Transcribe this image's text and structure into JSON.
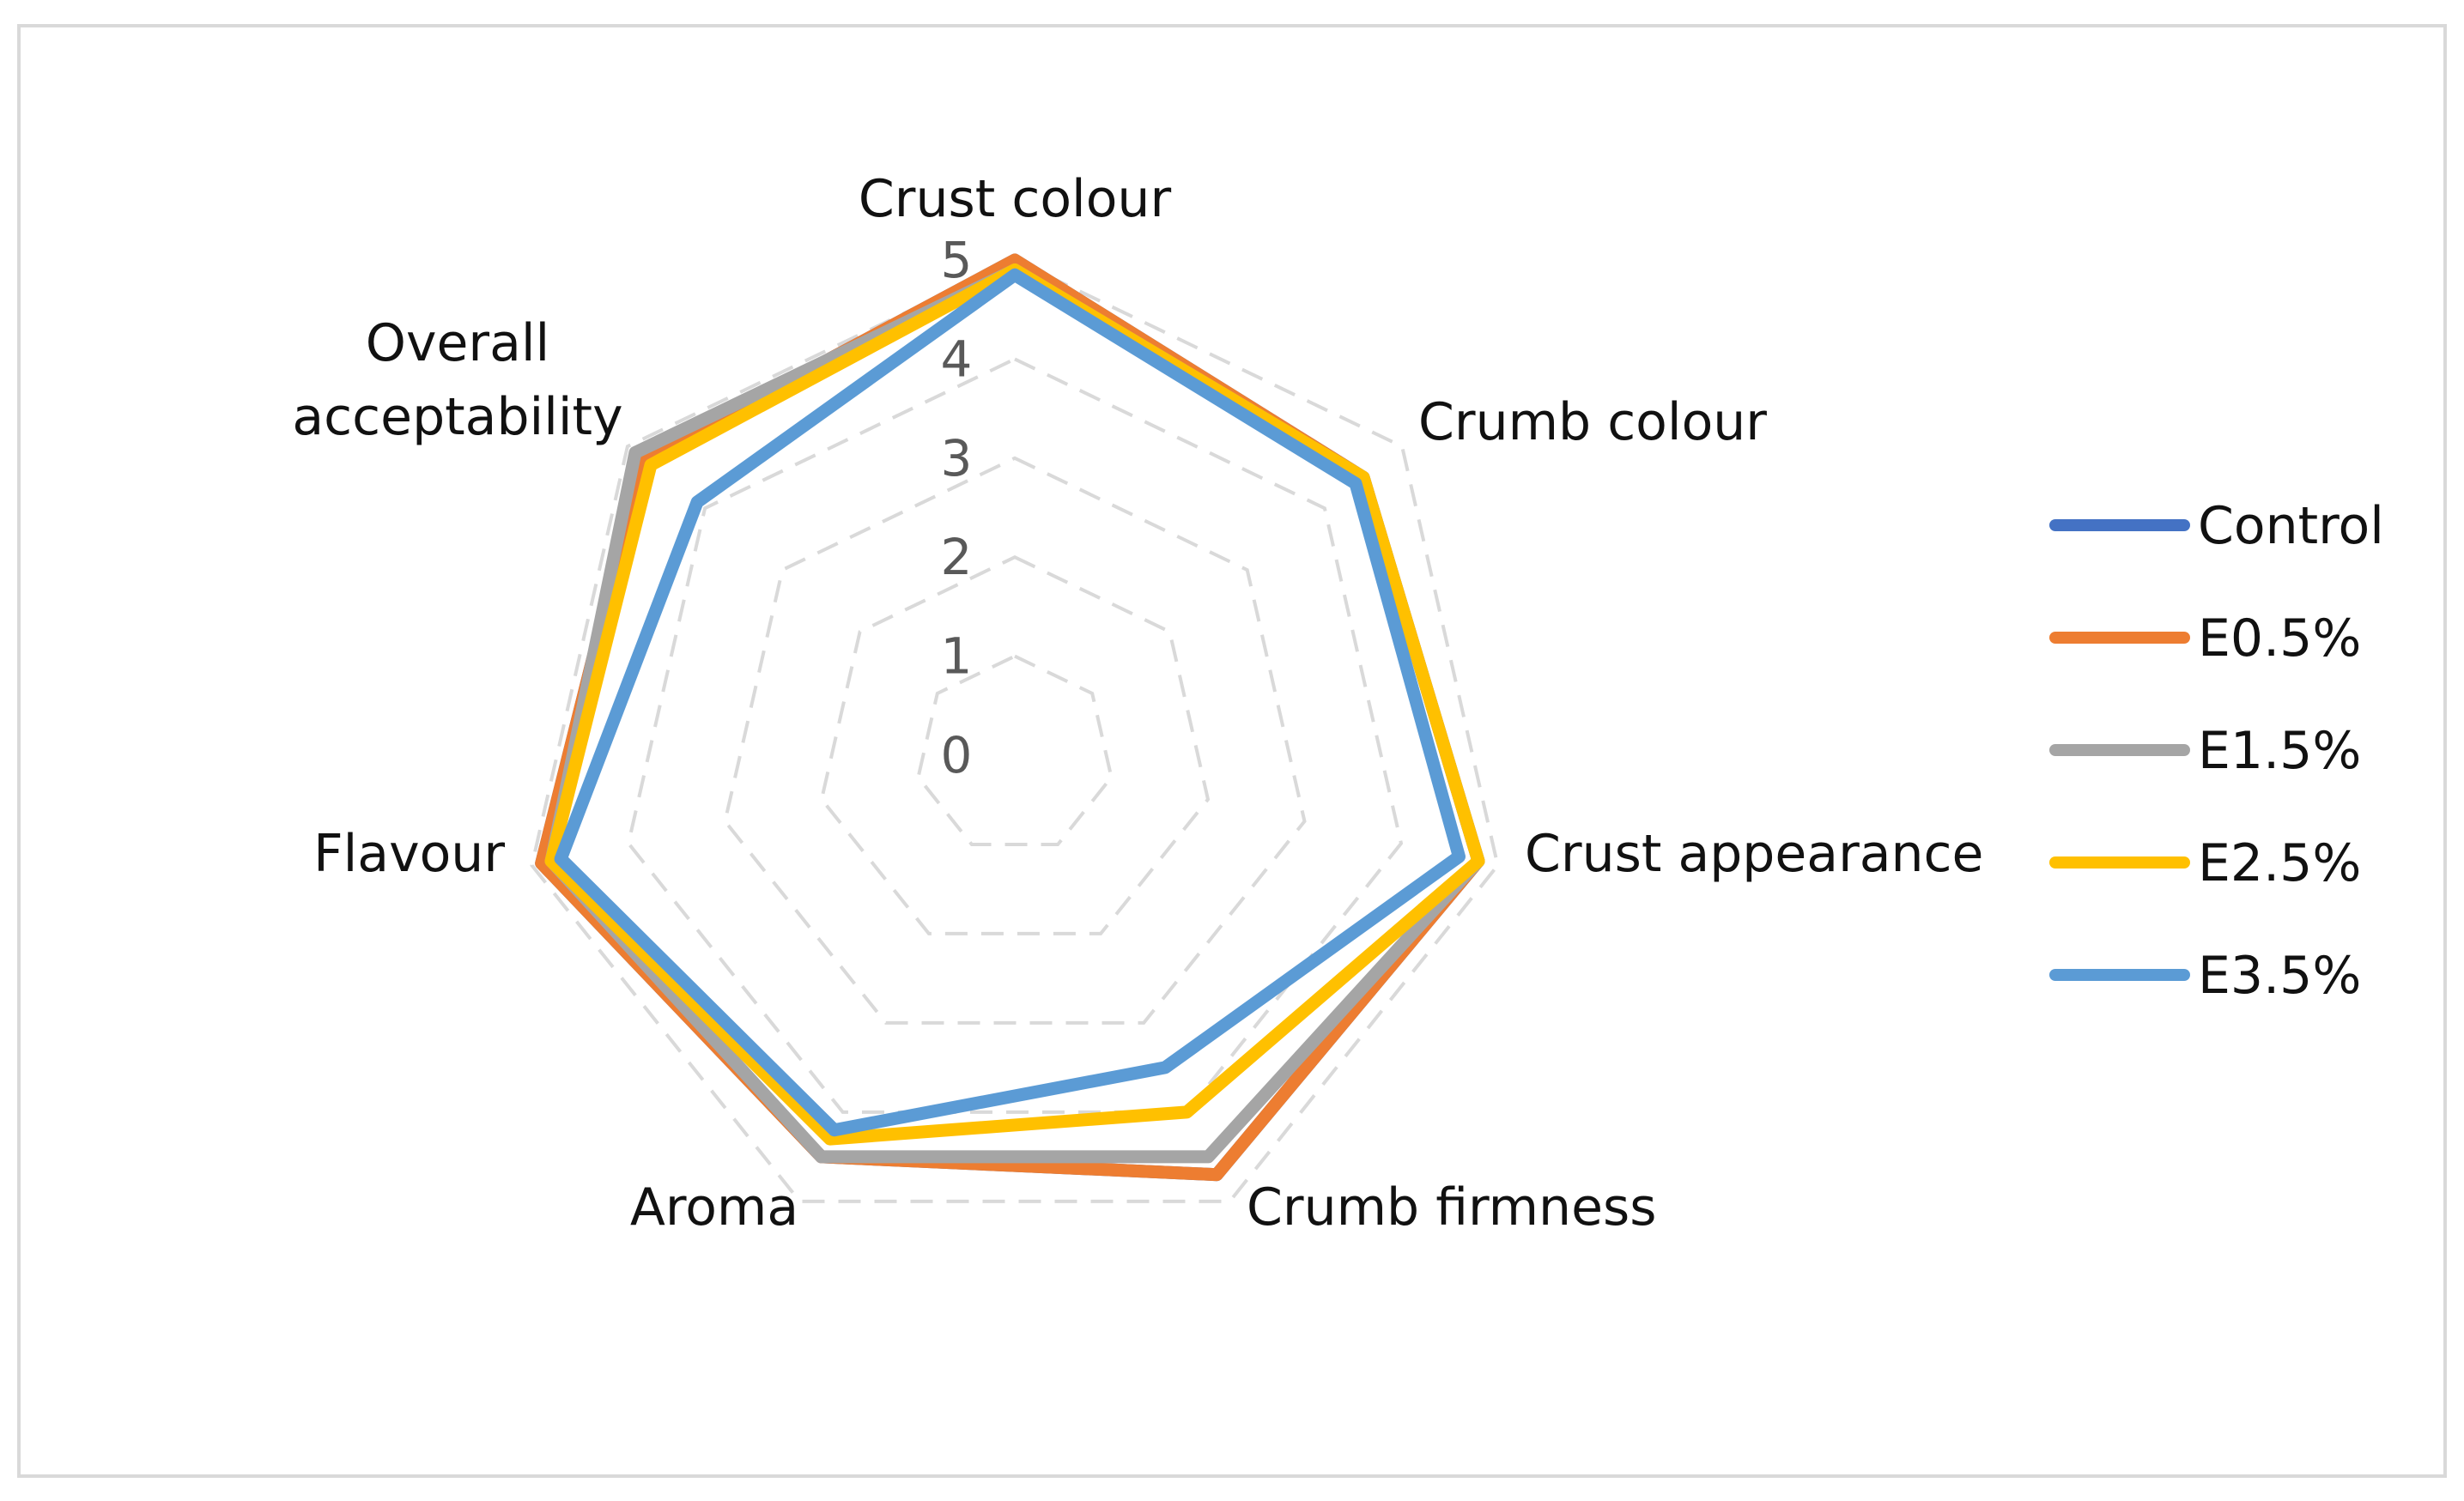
{
  "chart_data": {
    "type": "radar",
    "title": "",
    "axes": [
      "Crust colour",
      "Crumb colour",
      "Crust appearance",
      "Crumb firmness",
      "Aroma",
      "Flavour",
      "Overall acceptability"
    ],
    "r_ticks": [
      "0",
      "1",
      "2",
      "3",
      "4",
      "5"
    ],
    "r_range": [
      0,
      5
    ],
    "grid": "dashed",
    "legend_position": "right",
    "series": [
      {
        "name": "Control",
        "color": "#4472C4",
        "values": [
          5.0,
          4.5,
          4.8,
          4.7,
          4.5,
          4.9,
          4.8
        ]
      },
      {
        "name": "E0.5%",
        "color": "#ED7D31",
        "values": [
          5.0,
          4.5,
          4.8,
          4.7,
          4.5,
          4.9,
          4.8
        ]
      },
      {
        "name": "E1.5%",
        "color": "#A5A5A5",
        "values": [
          4.9,
          4.5,
          4.8,
          4.5,
          4.5,
          4.8,
          4.9
        ]
      },
      {
        "name": "E2.5%",
        "color": "#FFC000",
        "values": [
          4.9,
          4.5,
          4.8,
          4.0,
          4.3,
          4.8,
          4.7
        ]
      },
      {
        "name": "E3.5%",
        "color": "#5B9BD5",
        "values": [
          4.85,
          4.4,
          4.6,
          3.5,
          4.2,
          4.7,
          4.1
        ]
      }
    ]
  }
}
